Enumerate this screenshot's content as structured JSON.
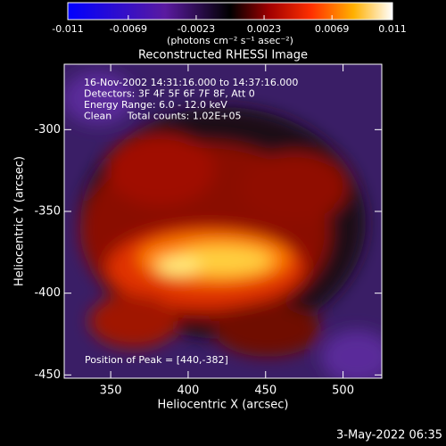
{
  "chart_data": {
    "type": "image",
    "title": "Reconstructed RHESSI Image",
    "xlabel": "Heliocentric X (arcsec)",
    "ylabel": "Heliocentric Y (arcsec)",
    "xlim": [
      320,
      525
    ],
    "xticks": [
      350,
      400,
      450,
      500
    ],
    "ylim": [
      -452,
      -260
    ],
    "yticks": [
      -300,
      -350,
      -400,
      -450
    ],
    "colorbar": {
      "label": "(photons cm⁻² s⁻¹ asec⁻²)",
      "lim": [
        -0.011,
        0.011
      ],
      "ticks": [
        -0.011,
        -0.0069,
        -0.0023,
        0.0023,
        0.0069,
        0.011
      ]
    },
    "annotations": [
      "16-Nov-2002 14:31:16.000 to 14:37:16.000",
      "Detectors: 3F 4F 5F 6F 7F 8F, Att 0",
      "Energy Range: 6.0 - 12.0 keV",
      "Clean     Total counts: 1.02E+05"
    ],
    "peak_note": "Position of Peak = [440,-382]",
    "timestamp": "3-May-2022 06:35"
  }
}
